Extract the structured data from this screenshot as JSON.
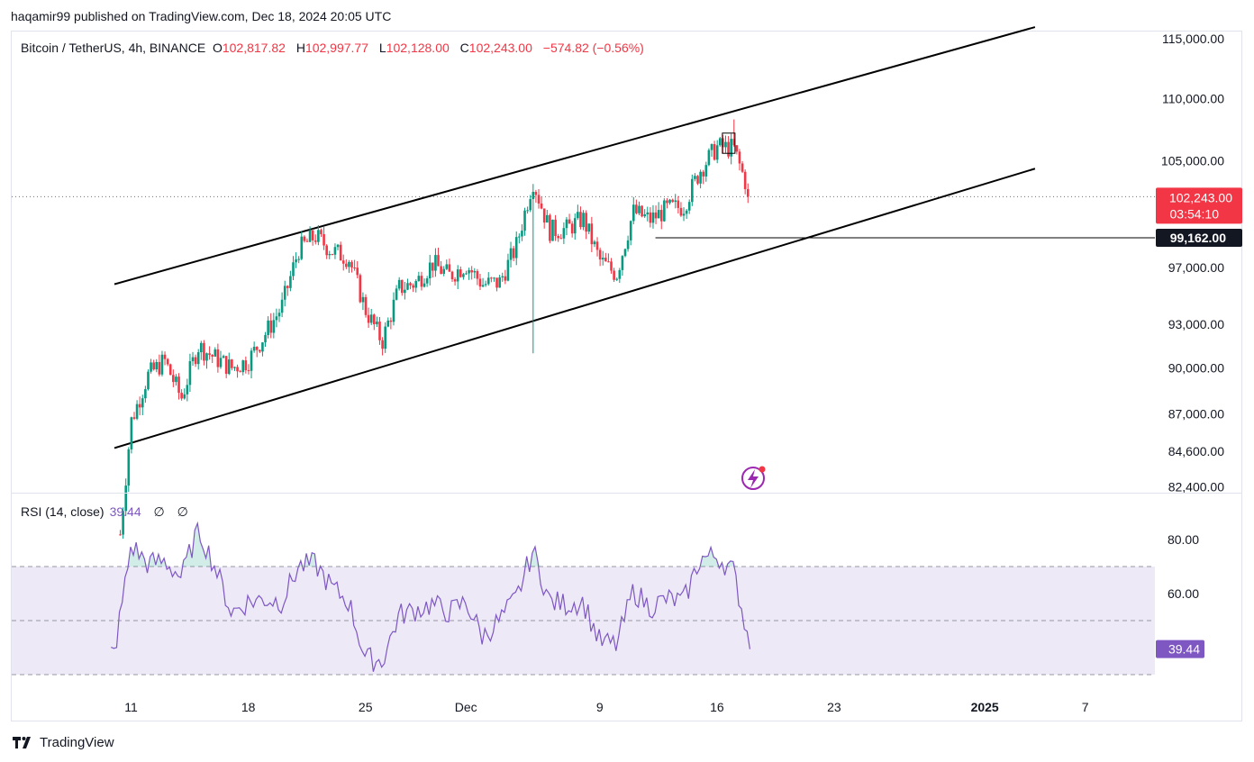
{
  "header": {
    "publisher_line": "haqamir99 published on TradingView.com, Dec 18, 2024 20:05 UTC"
  },
  "symbol": {
    "name": "Bitcoin / TetherUS, 4h, BINANCE",
    "open_label": "O",
    "open": "102,817.82",
    "high_label": "H",
    "high": "102,997.77",
    "low_label": "L",
    "low": "102,128.00",
    "close_label": "C",
    "close": "102,243.00",
    "change": "−574.82 (−0.56%)"
  },
  "price_tag": {
    "price": "102,243.00",
    "countdown": "03:54:10",
    "color": "#f23645"
  },
  "level_tag": {
    "price": "99,162.00"
  },
  "rsi": {
    "legend": "RSI (14, close)",
    "value": "39.44",
    "extra1": "∅",
    "extra2": "∅",
    "color": "#7e57c2"
  },
  "footer": {
    "brand": "TradingView"
  },
  "colors": {
    "up": "#089981",
    "down": "#f23645",
    "rsi_band": "#ede9f7"
  },
  "chart_data": [
    {
      "type": "candlestick",
      "title": "Bitcoin / TetherUS, 4h, BINANCE",
      "y_scale": "log",
      "y_ticks": [
        82400,
        84600,
        87000,
        90000,
        93000,
        97000,
        105000,
        110000,
        115000
      ],
      "y_tick_labels": [
        "82,400.00",
        "84,600.00",
        "87,000.00",
        "90,000.00",
        "93,000.00",
        "97,000.00",
        "105,000.00",
        "110,000.00",
        "115,000.00"
      ],
      "x_tick_labels": [
        "11",
        "18",
        "25",
        "Dec",
        "9",
        "16",
        "23",
        "2025",
        "7"
      ],
      "ohlc_path": [
        [
          "2024-11-10",
          76000
        ],
        [
          "2024-11-11",
          86500
        ],
        [
          "2024-11-12",
          89500
        ],
        [
          "2024-11-13",
          90500
        ],
        [
          "2024-11-14",
          88000
        ],
        [
          "2024-11-15",
          91500
        ],
        [
          "2024-11-16",
          90700
        ],
        [
          "2024-11-17",
          90000
        ],
        [
          "2024-11-18",
          90500
        ],
        [
          "2024-11-19",
          92300
        ],
        [
          "2024-11-20",
          94200
        ],
        [
          "2024-11-21",
          98300
        ],
        [
          "2024-11-22",
          99300
        ],
        [
          "2024-11-23",
          98200
        ],
        [
          "2024-11-24",
          97700
        ],
        [
          "2024-11-25",
          94000
        ],
        [
          "2024-11-26",
          91800
        ],
        [
          "2024-11-27",
          95500
        ],
        [
          "2024-11-28",
          95900
        ],
        [
          "2024-11-29",
          97300
        ],
        [
          "2024-11-30",
          96400
        ],
        [
          "2024-12-01",
          97200
        ],
        [
          "2024-12-02",
          95800
        ],
        [
          "2024-12-03",
          95900
        ],
        [
          "2024-12-04",
          98500
        ],
        [
          "2024-12-05",
          103500
        ],
        [
          "2024-12-06",
          99700
        ],
        [
          "2024-12-07",
          99800
        ],
        [
          "2024-12-08",
          100600
        ],
        [
          "2024-12-09",
          97500
        ],
        [
          "2024-12-10",
          96500
        ],
        [
          "2024-12-11",
          101100
        ],
        [
          "2024-12-12",
          100500
        ],
        [
          "2024-12-13",
          101300
        ],
        [
          "2024-12-14",
          101500
        ],
        [
          "2024-12-15",
          104300
        ],
        [
          "2024-12-16",
          106100
        ],
        [
          "2024-12-17",
          106000
        ],
        [
          "2024-12-18",
          102243
        ]
      ],
      "key_points": {
        "spike_low": [
          "2024-12-05",
          91000
        ],
        "high": [
          "2024-12-17",
          108300
        ],
        "last_close": 102243
      },
      "horizontal_line": 99162,
      "channel_upper": [
        [
          "2024-11-10",
          95800
        ],
        [
          "2025-01-04",
          116000
        ]
      ],
      "channel_lower": [
        [
          "2024-11-10",
          84800
        ],
        [
          "2025-01-04",
          104400
        ]
      ]
    },
    {
      "type": "line",
      "title": "RSI (14, close)",
      "y_ticks": [
        60,
        80
      ],
      "band": [
        30,
        70
      ],
      "midline": 50,
      "last_value": 39.44,
      "points": [
        [
          "2024-11-10",
          38
        ],
        [
          "2024-11-11",
          78
        ],
        [
          "2024-11-12",
          71
        ],
        [
          "2024-11-13",
          72
        ],
        [
          "2024-11-14",
          66
        ],
        [
          "2024-11-15",
          84
        ],
        [
          "2024-11-16",
          70
        ],
        [
          "2024-11-17",
          53
        ],
        [
          "2024-11-18",
          57
        ],
        [
          "2024-11-19",
          58
        ],
        [
          "2024-11-20",
          57
        ],
        [
          "2024-11-21",
          70
        ],
        [
          "2024-11-22",
          71
        ],
        [
          "2024-11-23",
          62
        ],
        [
          "2024-11-24",
          57
        ],
        [
          "2024-11-25",
          36
        ],
        [
          "2024-11-26",
          35
        ],
        [
          "2024-11-27",
          52
        ],
        [
          "2024-11-28",
          54
        ],
        [
          "2024-11-29",
          56
        ],
        [
          "2024-11-30",
          53
        ],
        [
          "2024-12-01",
          57
        ],
        [
          "2024-12-02",
          44
        ],
        [
          "2024-12-03",
          50
        ],
        [
          "2024-12-04",
          58
        ],
        [
          "2024-12-05",
          76
        ],
        [
          "2024-12-06",
          57
        ],
        [
          "2024-12-07",
          56
        ],
        [
          "2024-12-08",
          57
        ],
        [
          "2024-12-09",
          42
        ],
        [
          "2024-12-10",
          41
        ],
        [
          "2024-12-11",
          61
        ],
        [
          "2024-12-12",
          55
        ],
        [
          "2024-12-13",
          58
        ],
        [
          "2024-12-14",
          57
        ],
        [
          "2024-12-15",
          73
        ],
        [
          "2024-12-16",
          74
        ],
        [
          "2024-12-17",
          68
        ],
        [
          "2024-12-18",
          39.44
        ]
      ]
    }
  ]
}
